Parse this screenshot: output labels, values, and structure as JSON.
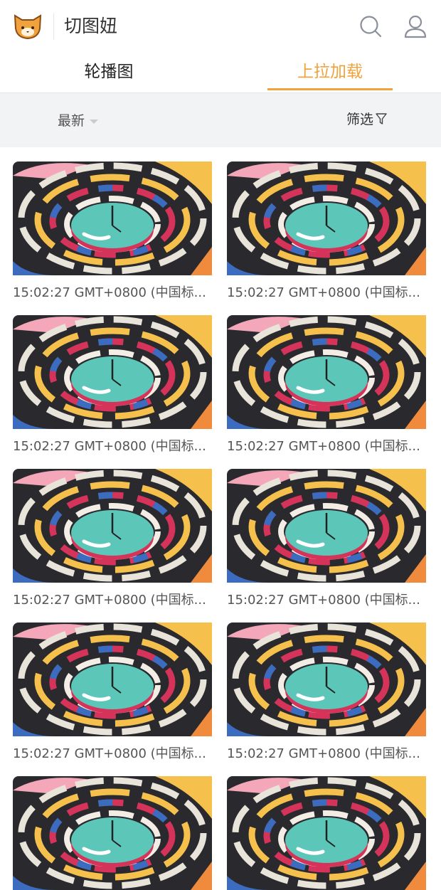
{
  "header": {
    "title": "切图妞"
  },
  "tabs": {
    "items": [
      "轮播图",
      "上拉加载"
    ],
    "active": 1
  },
  "filter_bar": {
    "sort": "最新",
    "filter": "筛选"
  },
  "grid": {
    "items": [
      {
        "caption": "15:02:27 GMT+0800 (中国标..."
      },
      {
        "caption": "15:02:27 GMT+0800 (中国标..."
      },
      {
        "caption": "15:02:27 GMT+0800 (中国标..."
      },
      {
        "caption": "15:02:27 GMT+0800 (中国标..."
      },
      {
        "caption": "15:02:27 GMT+0800 (中国标..."
      },
      {
        "caption": "15:02:27 GMT+0800 (中国标..."
      },
      {
        "caption": "15:02:27 GMT+0800 (中国标..."
      },
      {
        "caption": "15:02:27 GMT+0800 (中国标..."
      }
    ]
  }
}
